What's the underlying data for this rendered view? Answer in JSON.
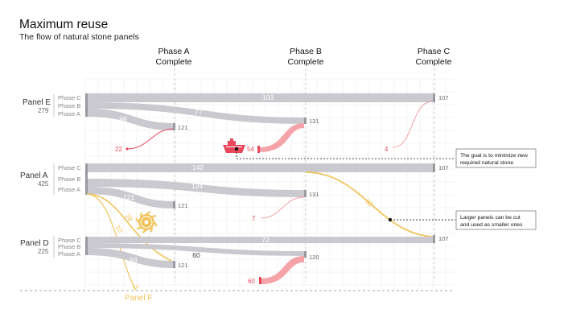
{
  "header": {
    "title": "Maximum reuse",
    "subtitle": "The flow of natural stone panels"
  },
  "phases": [
    {
      "line1": "Phase A",
      "line2": "Complete"
    },
    {
      "line1": "Phase B",
      "line2": "Complete"
    },
    {
      "line1": "Phase C",
      "line2": "Complete"
    }
  ],
  "panels": [
    {
      "name": "Panel E",
      "total": "279",
      "rows": [
        "Phase C",
        "Phase B",
        "Phase A"
      ]
    },
    {
      "name": "Panel A",
      "total": "425",
      "rows": [
        "Phase C",
        "Phase B",
        "Phase A"
      ]
    },
    {
      "name": "Panel D",
      "total": "225",
      "rows": [
        "Phase C",
        "Phase B",
        "Phase A"
      ]
    }
  ],
  "flows": {
    "e_c": "103",
    "e_b": "77",
    "e_a": "99",
    "a_c": "142",
    "a_b": "124",
    "a_a": "121",
    "a_to_c": "35",
    "a_to_f_1": "28",
    "a_to_f_2": "10",
    "d_c": "72",
    "d_b": "60",
    "d_a": "93"
  },
  "endpoints": {
    "e_a": "121",
    "e_b": "131",
    "e_c": "107",
    "a_a": "121",
    "a_b": "131",
    "a_c": "107",
    "d_a": "121",
    "d_b": "120",
    "d_c": "107"
  },
  "new_stone": {
    "e_a": "22",
    "e_b": "54",
    "e_c": "4",
    "a_b": "7",
    "d_b": "60"
  },
  "outputs": {
    "panel_f": "Panel F"
  },
  "annotations": {
    "goal": [
      "The goal is to minimize new",
      "required natural stone"
    ],
    "cut": [
      "Larger panels can be cut",
      "and used as smaller ones"
    ]
  },
  "colors": {
    "band": "#c9c9cf",
    "band_dark": "#9a9aa3",
    "red": "#e8485a",
    "red_soft": "#f4a3a8",
    "yellow": "#f0c45c",
    "grid": "#ececec"
  },
  "icons": [
    "ship-icon",
    "saw-blade-icon"
  ]
}
